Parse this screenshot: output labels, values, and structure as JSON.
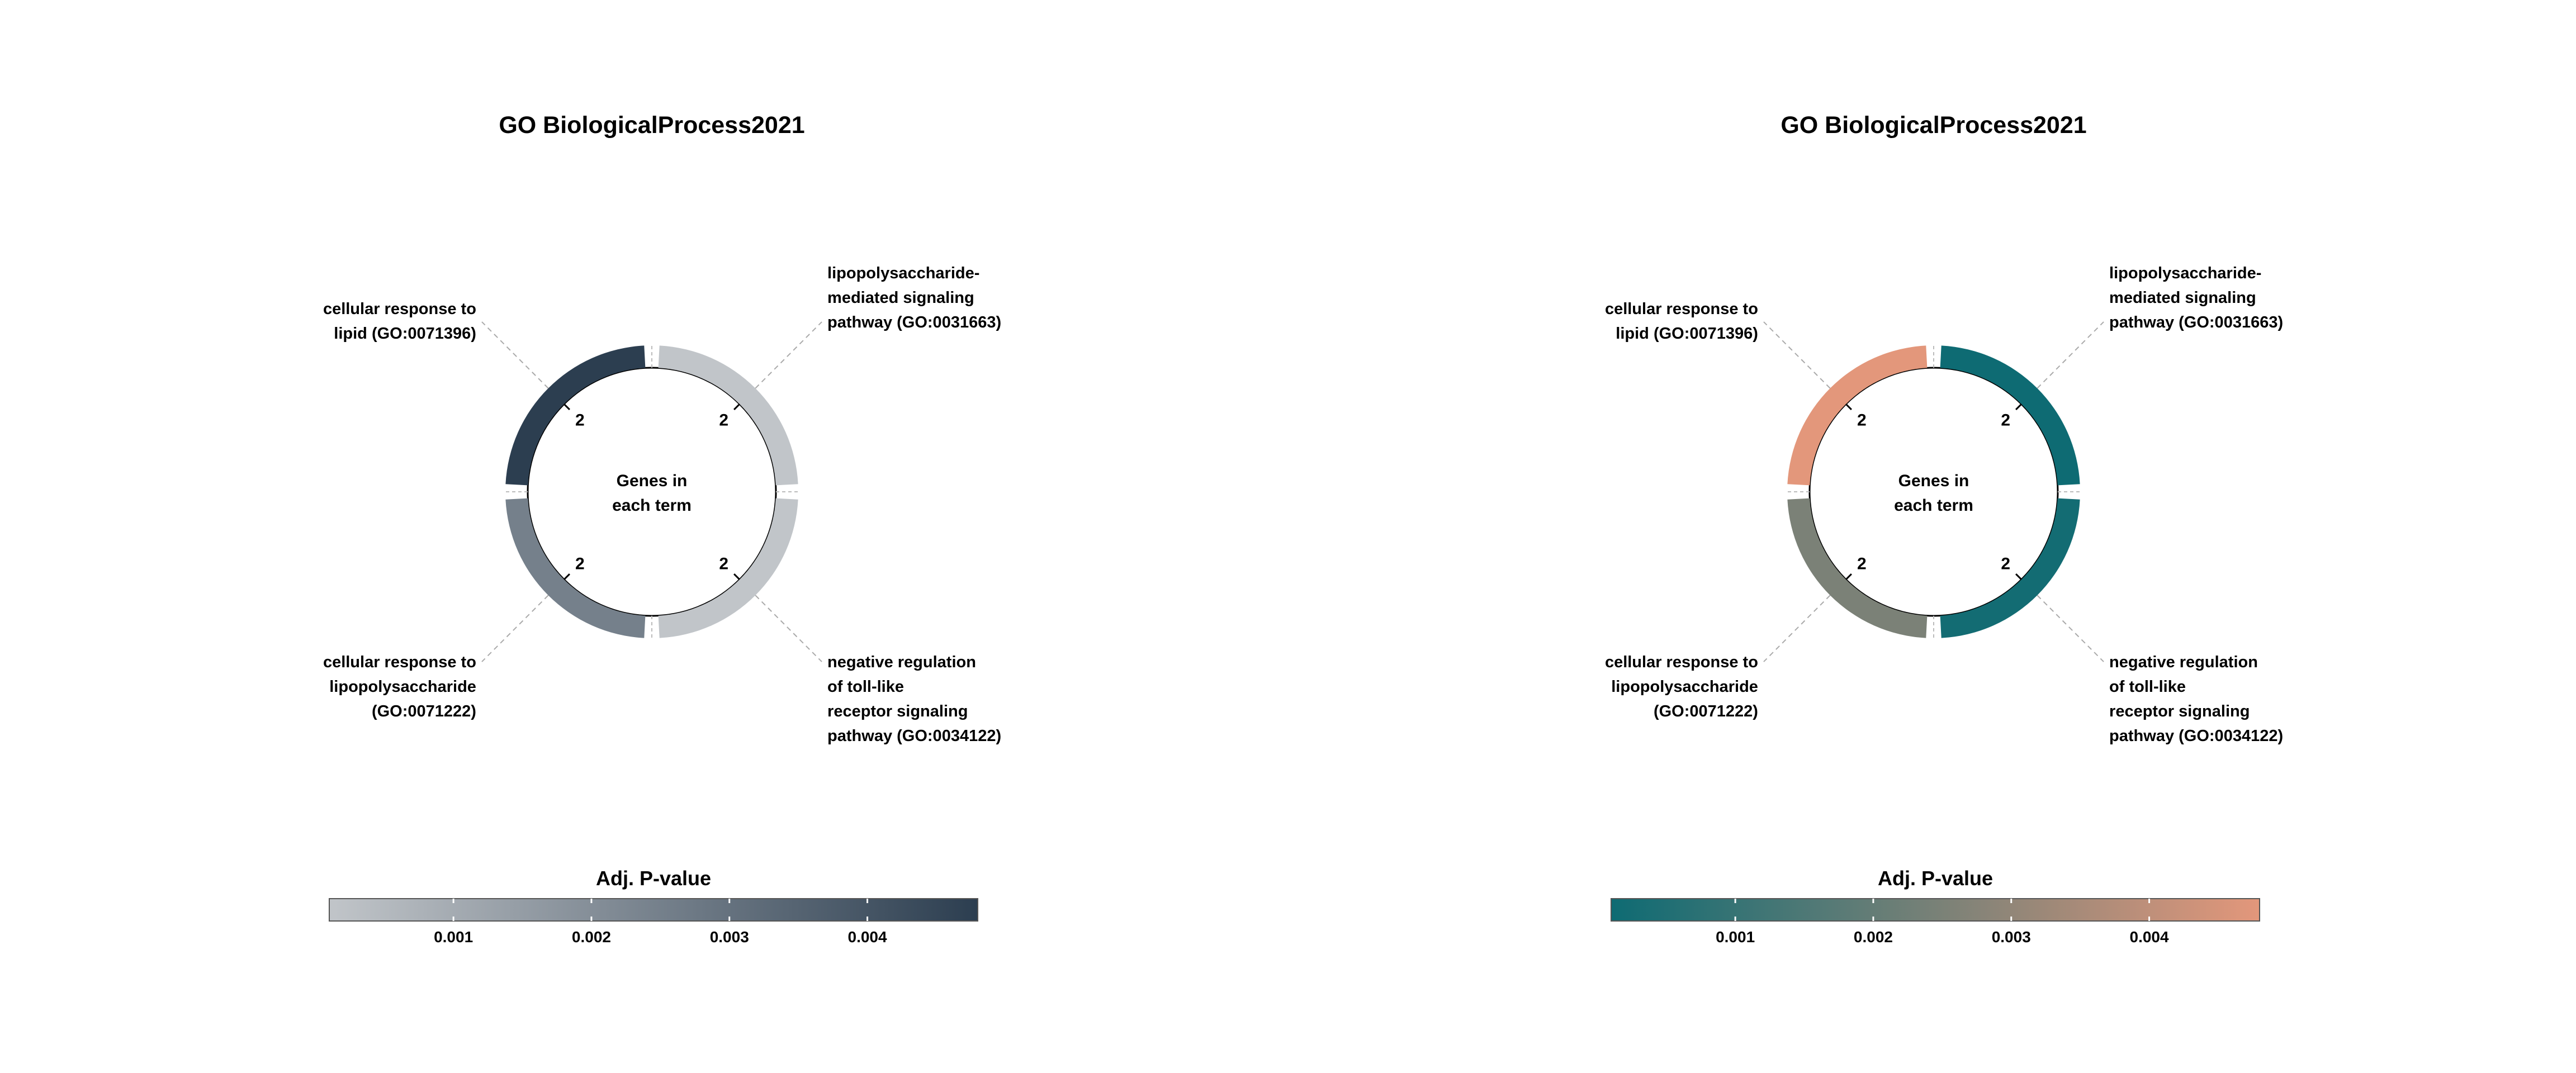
{
  "chart_data": [
    {
      "type": "donut",
      "title": "GO BiologicalProcess2021",
      "center_label": [
        "Genes in",
        "each term"
      ],
      "segments": [
        {
          "term": [
            "lipopolysaccharide-",
            "mediated signaling",
            "pathway (GO:0031663)"
          ],
          "genes": 2,
          "adj_p": 0.0001
        },
        {
          "term": [
            "negative regulation",
            "of toll-like",
            "receptor signaling",
            "pathway (GO:0034122)"
          ],
          "genes": 2,
          "adj_p": 0.0001
        },
        {
          "term": [
            "cellular response to",
            "lipopolysaccharide",
            "(GO:0071222)"
          ],
          "genes": 2,
          "adj_p": 0.0025
        },
        {
          "term": [
            "cellular response to",
            "lipid (GO:0071396)"
          ],
          "genes": 2,
          "adj_p": 0.0048
        }
      ],
      "colorbar": {
        "title": "Adj. P-value",
        "ticks": [
          "0.001",
          "0.002",
          "0.003",
          "0.004"
        ],
        "tick_values": [
          0.001,
          0.002,
          0.003,
          0.004
        ],
        "range": [
          0.0001,
          0.0048
        ],
        "colors": [
          "#c1c5c9",
          "#2c3e50"
        ]
      }
    },
    {
      "type": "donut",
      "title": "GO BiologicalProcess2021",
      "center_label": [
        "Genes in",
        "each term"
      ],
      "segments": [
        {
          "term": [
            "lipopolysaccharide-",
            "mediated signaling",
            "pathway (GO:0031663)"
          ],
          "genes": 2,
          "adj_p": 0.0001
        },
        {
          "term": [
            "negative regulation",
            "of toll-like",
            "receptor signaling",
            "pathway (GO:0034122)"
          ],
          "genes": 2,
          "adj_p": 0.0002
        },
        {
          "term": [
            "cellular response to",
            "lipopolysaccharide",
            "(GO:0071222)"
          ],
          "genes": 2,
          "adj_p": 0.0025
        },
        {
          "term": [
            "cellular response to",
            "lipid (GO:0071396)"
          ],
          "genes": 2,
          "adj_p": 0.0048
        }
      ],
      "colorbar": {
        "title": "Adj. P-value",
        "ticks": [
          "0.001",
          "0.002",
          "0.003",
          "0.004"
        ],
        "tick_values": [
          0.001,
          0.002,
          0.003,
          0.004
        ],
        "range": [
          0.0001,
          0.0048
        ],
        "colors": [
          "#0e6b73",
          "#e3977b"
        ]
      }
    }
  ]
}
